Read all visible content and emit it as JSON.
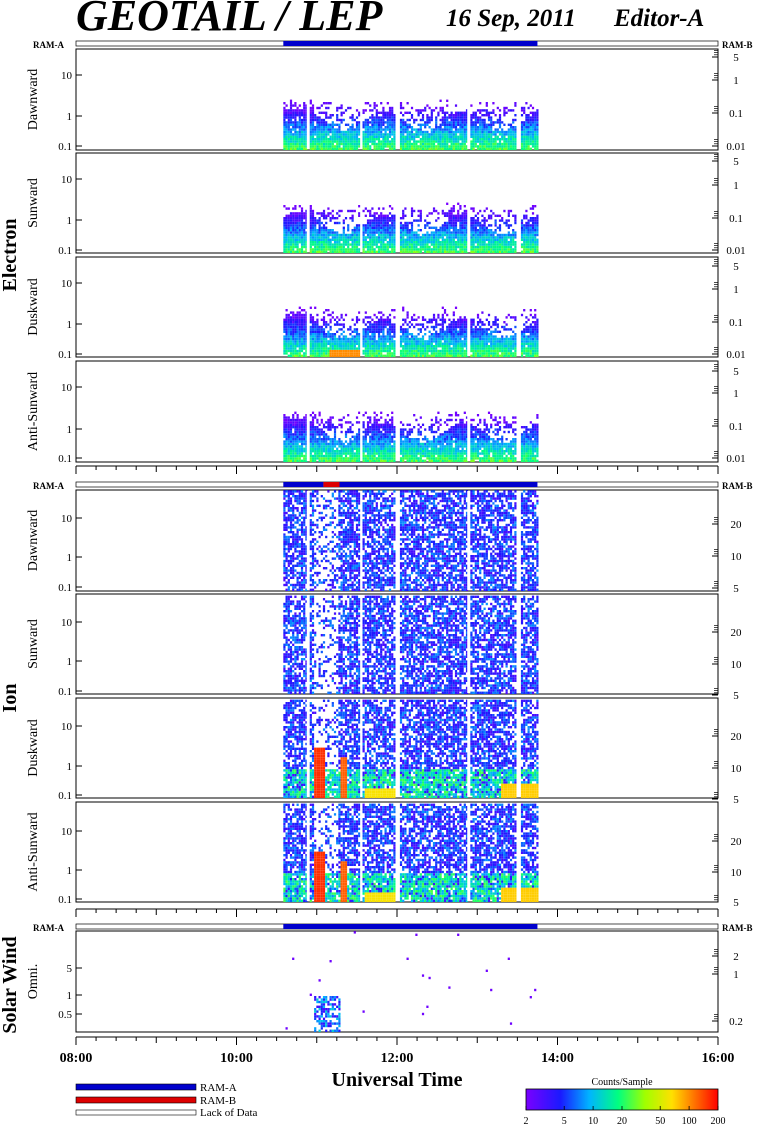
{
  "header": {
    "title": "GEOTAIL / LEP",
    "date": "16 Sep, 2011",
    "editor": "Editor-A"
  },
  "ram_labels": {
    "left": "RAM-A",
    "right": "RAM-B"
  },
  "groups": [
    {
      "name": "Electron",
      "panels": [
        "Dawnward",
        "Sunward",
        "Duskward",
        "Anti-Sunward"
      ]
    },
    {
      "name": "Ion",
      "panels": [
        "Dawnward",
        "Sunward",
        "Duskward",
        "Anti-Sunward"
      ]
    },
    {
      "name": "Solar Wind",
      "panels": [
        "Omni."
      ]
    }
  ],
  "left_axis": {
    "standard_ticks": [
      "10",
      "1",
      "0.1"
    ],
    "solar_wind_ticks": [
      "5",
      "1",
      "0.5"
    ]
  },
  "right_axis": {
    "electron_ticks": [
      "5",
      "1",
      "0.1",
      "0.01"
    ],
    "ion_ticks": [
      "20",
      "10",
      "5"
    ],
    "solar_wind_ticks": [
      "2",
      "1",
      "0.2"
    ]
  },
  "x_axis": {
    "label": "Universal Time",
    "ticks": [
      "08:00",
      "10:00",
      "12:00",
      "14:00",
      "16:00"
    ]
  },
  "legend": {
    "items": [
      {
        "label": "RAM-A",
        "color": "#0000cc"
      },
      {
        "label": "RAM-B",
        "color": "#dd0000"
      },
      {
        "label": "Lack of Data",
        "color": "#ffffff"
      }
    ]
  },
  "colorbar": {
    "title": "Counts/Sample",
    "ticks": [
      "2",
      "5",
      "10",
      "20",
      "50",
      "100",
      "200"
    ]
  },
  "chart_data": {
    "type": "heatmap",
    "title": "GEOTAIL / LEP",
    "xlabel": "Universal Time",
    "x_ticks": [
      "08:00",
      "10:00",
      "12:00",
      "14:00",
      "16:00"
    ],
    "data_coverage": {
      "start": "10:35",
      "end": "13:45"
    },
    "data_gaps": [
      "10:53",
      "11:33",
      "12:00",
      "12:53",
      "13:30"
    ],
    "ram_intervals": [
      {
        "section": "Electron",
        "mode": "RAM-A",
        "start": "10:35",
        "end": "13:45"
      },
      {
        "section": "Ion",
        "mode": "RAM-A",
        "start": "10:35",
        "end": "11:05"
      },
      {
        "section": "Ion",
        "mode": "RAM-B",
        "start": "11:05",
        "end": "11:17"
      },
      {
        "section": "Ion",
        "mode": "RAM-A",
        "start": "11:17",
        "end": "13:45"
      },
      {
        "section": "Solar Wind",
        "mode": "RAM-A",
        "start": "10:35",
        "end": "13:45"
      }
    ],
    "colorbar_range": [
      2,
      200
    ],
    "colorbar_scale": "log",
    "y_scale": "log"
  }
}
